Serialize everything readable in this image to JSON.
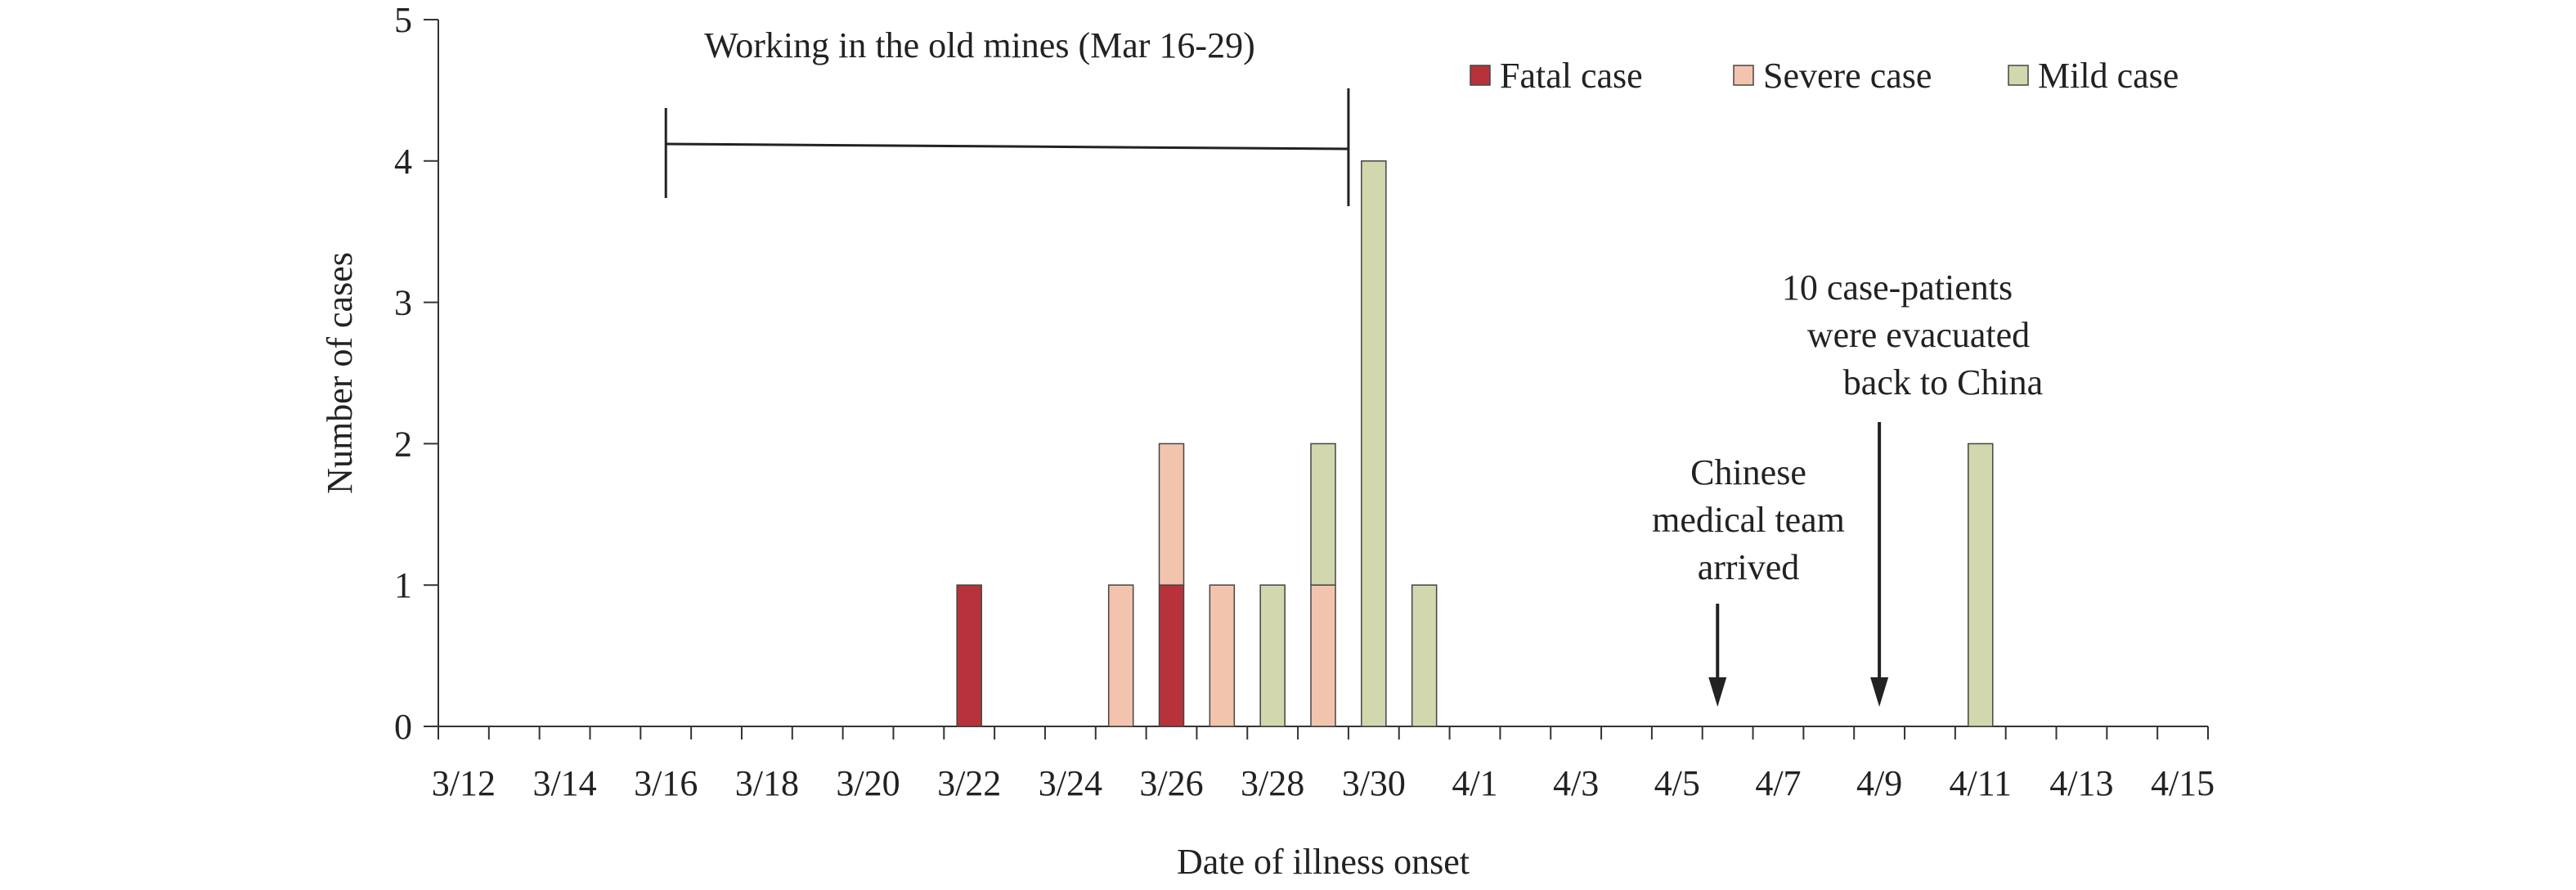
{
  "chart_data": {
    "type": "bar",
    "stacked": true,
    "xlabel": "Date of illness onset",
    "ylabel": "Number of cases",
    "ylim": [
      0,
      5
    ],
    "y_ticks": [
      "0",
      "1",
      "2",
      "3",
      "4",
      "5"
    ],
    "x_range_days": [
      -0.5,
      34.5
    ],
    "x_tick_labels": [
      {
        "day": 0,
        "label": "3/12"
      },
      {
        "day": 2,
        "label": "3/14"
      },
      {
        "day": 4,
        "label": "3/16"
      },
      {
        "day": 6,
        "label": "3/18"
      },
      {
        "day": 8,
        "label": "3/20"
      },
      {
        "day": 10,
        "label": "3/22"
      },
      {
        "day": 12,
        "label": "3/24"
      },
      {
        "day": 14,
        "label": "3/26"
      },
      {
        "day": 16,
        "label": "3/28"
      },
      {
        "day": 18,
        "label": "3/30"
      },
      {
        "day": 20,
        "label": "4/1"
      },
      {
        "day": 22,
        "label": "4/3"
      },
      {
        "day": 24,
        "label": "4/5"
      },
      {
        "day": 26,
        "label": "4/7"
      },
      {
        "day": 28,
        "label": "4/9"
      },
      {
        "day": 30,
        "label": "4/11"
      },
      {
        "day": 32,
        "label": "4/13"
      },
      {
        "day": 34,
        "label": "4/15"
      }
    ],
    "legend": [
      {
        "key": "fatal",
        "label": "Fatal case",
        "color": "#b7323a"
      },
      {
        "key": "severe",
        "label": "Severe case",
        "color": "#f3c4ad"
      },
      {
        "key": "mild",
        "label": "Mild case",
        "color": "#d2d7ad"
      }
    ],
    "series": [
      {
        "key": "fatal",
        "name": "Fatal case",
        "points": [
          {
            "day": 10,
            "date": "3/22",
            "value": 1
          },
          {
            "day": 14,
            "date": "3/26",
            "value": 1
          }
        ]
      },
      {
        "key": "severe",
        "name": "Severe case",
        "points": [
          {
            "day": 13,
            "date": "3/25",
            "value": 1
          },
          {
            "day": 14,
            "date": "3/26",
            "value": 1
          },
          {
            "day": 15,
            "date": "3/27",
            "value": 1
          },
          {
            "day": 17,
            "date": "3/29",
            "value": 1
          }
        ]
      },
      {
        "key": "mild",
        "name": "Mild case",
        "points": [
          {
            "day": 16,
            "date": "3/28",
            "value": 1
          },
          {
            "day": 17,
            "date": "3/29",
            "value": 1
          },
          {
            "day": 18,
            "date": "3/30",
            "value": 4
          },
          {
            "day": 19,
            "date": "3/31",
            "value": 1
          },
          {
            "day": 30,
            "date": "4/11",
            "value": 2
          }
        ]
      }
    ],
    "annotations": {
      "mine_period": {
        "label": "Working in the old mines (Mar 16-29)",
        "start_day": 4,
        "end_day": 17.5
      },
      "medical_team": {
        "lines": [
          "Chinese",
          "medical team",
          "arrived"
        ],
        "day": 24.8
      },
      "evacuation": {
        "lines": [
          "10 case-patients",
          "were evacuated",
          "back to China"
        ],
        "day": 28
      }
    }
  }
}
